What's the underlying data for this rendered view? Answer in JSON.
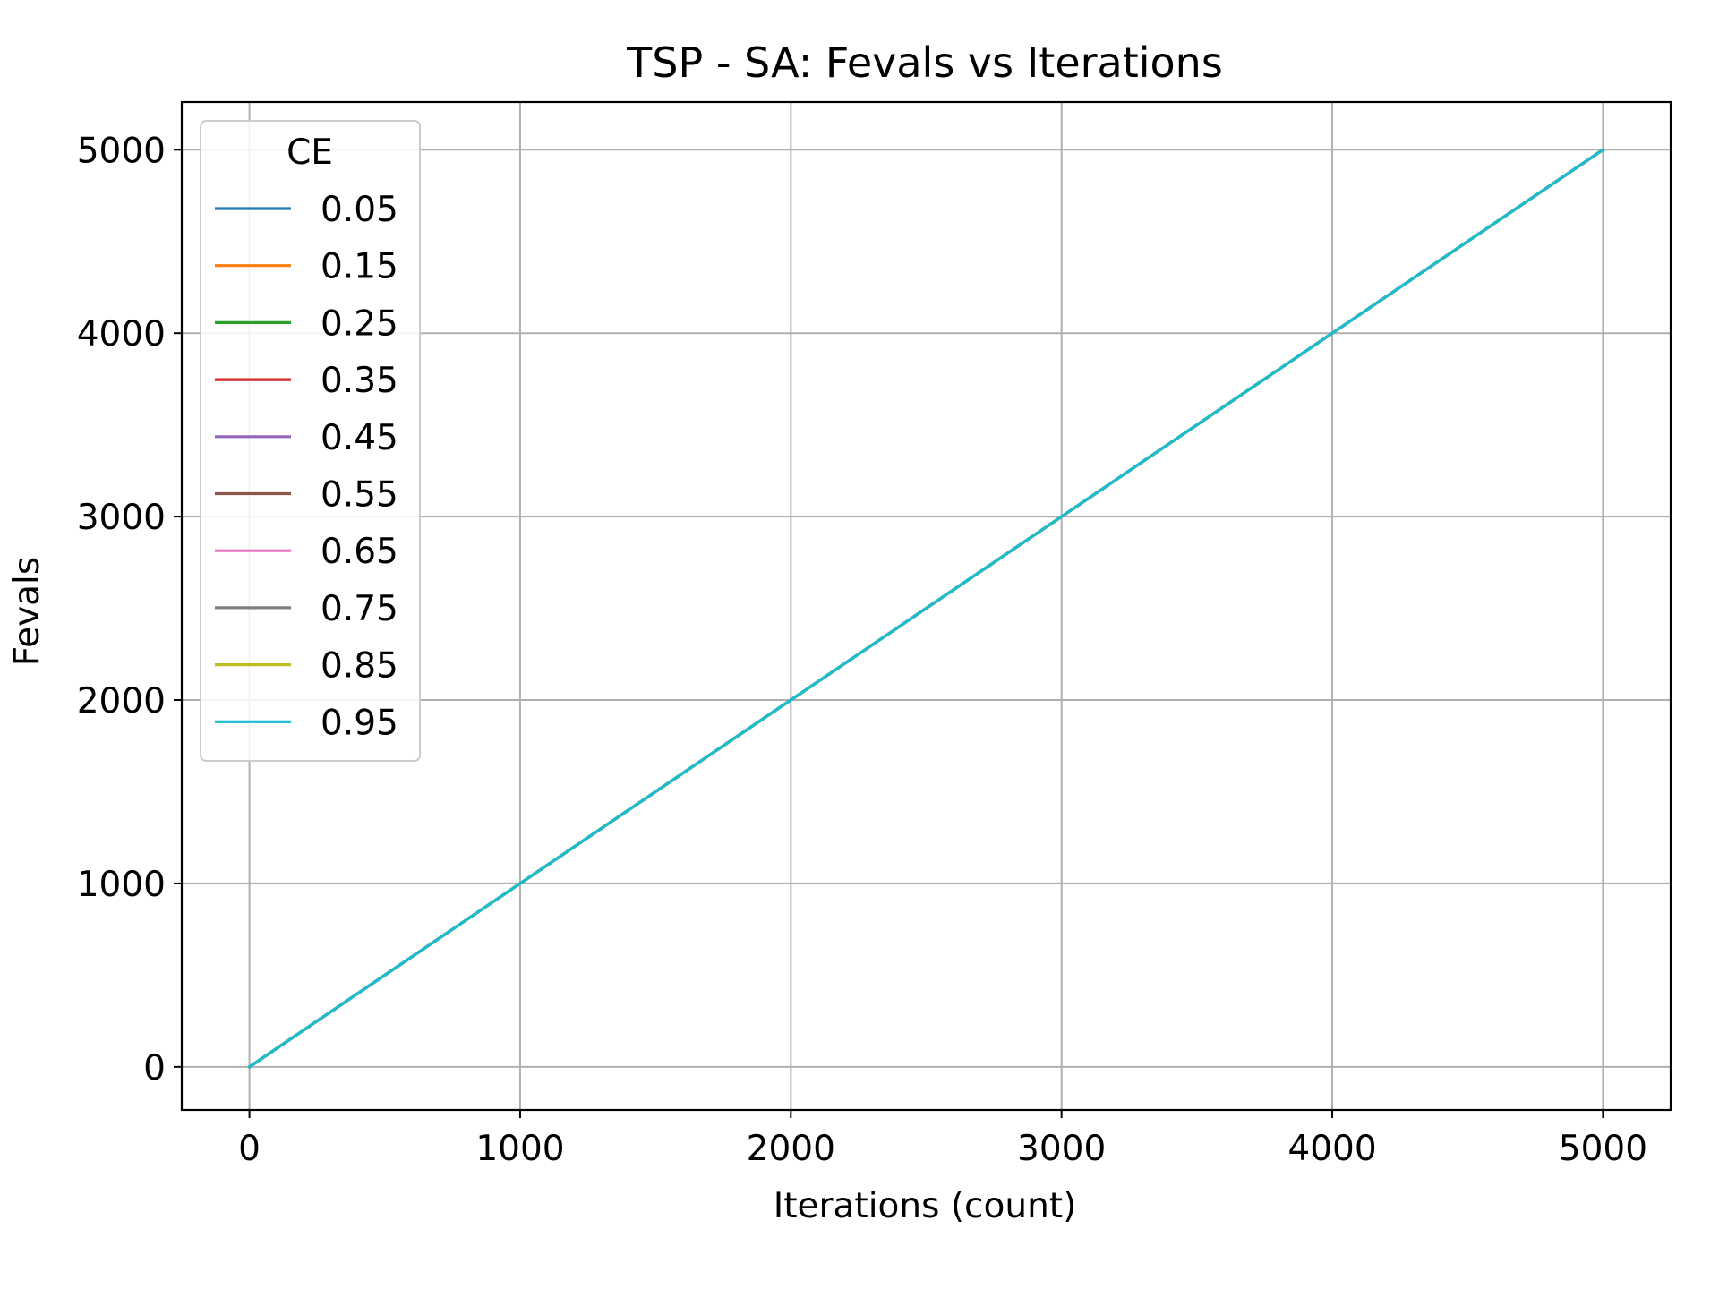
{
  "chart_data": {
    "type": "line",
    "title": "TSP - SA: Fevals vs Iterations",
    "xlabel": "Iterations (count)",
    "ylabel": "Fevals",
    "xlim": [
      -250,
      5250
    ],
    "ylim": [
      -235,
      5260
    ],
    "xticks": [
      0,
      1000,
      2000,
      3000,
      4000,
      5000
    ],
    "yticks": [
      0,
      1000,
      2000,
      3000,
      4000,
      5000
    ],
    "grid": true,
    "legend": {
      "title": "CE",
      "placement": "upper-left"
    },
    "series": [
      {
        "name": "0.05",
        "color": "#1f77b4",
        "x": [
          0,
          5000
        ],
        "y": [
          0,
          5000
        ]
      },
      {
        "name": "0.15",
        "color": "#ff7f0e",
        "x": [
          0,
          5000
        ],
        "y": [
          0,
          5000
        ]
      },
      {
        "name": "0.25",
        "color": "#2ca02c",
        "x": [
          0,
          5000
        ],
        "y": [
          0,
          5000
        ]
      },
      {
        "name": "0.35",
        "color": "#d62728",
        "x": [
          0,
          5000
        ],
        "y": [
          0,
          5000
        ]
      },
      {
        "name": "0.45",
        "color": "#9467bd",
        "x": [
          0,
          5000
        ],
        "y": [
          0,
          5000
        ]
      },
      {
        "name": "0.55",
        "color": "#8c564b",
        "x": [
          0,
          5000
        ],
        "y": [
          0,
          5000
        ]
      },
      {
        "name": "0.65",
        "color": "#e377c2",
        "x": [
          0,
          5000
        ],
        "y": [
          0,
          5000
        ]
      },
      {
        "name": "0.75",
        "color": "#7f7f7f",
        "x": [
          0,
          5000
        ],
        "y": [
          0,
          5000
        ]
      },
      {
        "name": "0.85",
        "color": "#bcbd22",
        "x": [
          0,
          5000
        ],
        "y": [
          0,
          5000
        ]
      },
      {
        "name": "0.95",
        "color": "#17becf",
        "x": [
          0,
          5000
        ],
        "y": [
          0,
          5000
        ]
      }
    ]
  }
}
